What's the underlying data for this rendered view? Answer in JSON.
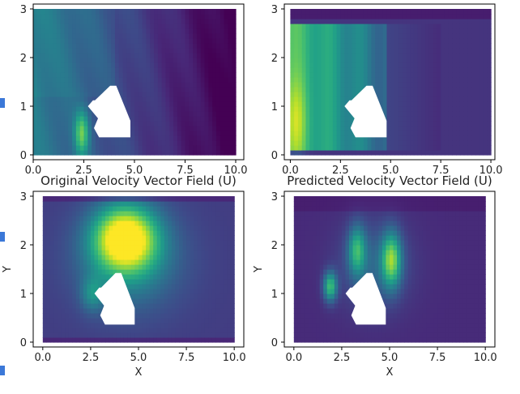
{
  "figure": {
    "side_markers": 3
  },
  "chart_data": [
    {
      "type": "heatmap",
      "id": "top-left",
      "title": "",
      "xlabel": "",
      "ylabel": "",
      "xlim": [
        0,
        10.4
      ],
      "ylim": [
        -0.1,
        3.1
      ],
      "xticks": [
        "0.0",
        "2.5",
        "5.0",
        "7.5",
        "10.0"
      ],
      "xtick_values": [
        0,
        2.5,
        5,
        7.5,
        10
      ],
      "yticks": [
        "0",
        "1",
        "2",
        "3"
      ],
      "ytick_values": [
        0,
        1,
        2,
        3
      ],
      "colormap": "viridis",
      "field": "smooth-left-gradient"
    },
    {
      "type": "heatmap",
      "id": "top-right",
      "title": "",
      "xlabel": "",
      "ylabel": "",
      "xlim": [
        -0.3,
        10.2
      ],
      "ylim": [
        -0.1,
        3.1
      ],
      "xticks": [
        "0.0",
        "2.5",
        "5.0",
        "7.5",
        "10.0"
      ],
      "xtick_values": [
        0,
        2.5,
        5,
        7.5,
        10
      ],
      "yticks": [
        "0",
        "1",
        "2",
        "3"
      ],
      "ytick_values": [
        0,
        1,
        2,
        3
      ],
      "colormap": "viridis",
      "field": "bright-left-block"
    },
    {
      "type": "heatmap",
      "id": "bottom-left",
      "title": "Original Velocity Vector Field (U)",
      "xlabel": "X",
      "ylabel": "Y",
      "xlim": [
        -0.5,
        10.5
      ],
      "ylim": [
        -0.1,
        3.1
      ],
      "xticks": [
        "0.0",
        "2.5",
        "5.0",
        "7.5",
        "10.0"
      ],
      "xtick_values": [
        0,
        2.5,
        5,
        7.5,
        10
      ],
      "yticks": [
        "0",
        "1",
        "2",
        "3"
      ],
      "ytick_values": [
        0,
        1,
        2,
        3
      ],
      "colormap": "viridis",
      "field": "hotspot-above-obstacle"
    },
    {
      "type": "heatmap",
      "id": "bottom-right",
      "title": "Predicted Velocity Vector Field (U)",
      "xlabel": "X",
      "ylabel": "Y",
      "xlim": [
        -0.5,
        10.5
      ],
      "ylim": [
        -0.1,
        3.1
      ],
      "xticks": [
        "0.0",
        "2.5",
        "5.0",
        "7.5",
        "10.0"
      ],
      "xtick_values": [
        0,
        2.5,
        5,
        7.5,
        10
      ],
      "yticks": [
        "0",
        "1",
        "2",
        "3"
      ],
      "ytick_values": [
        0,
        1,
        2,
        3
      ],
      "colormap": "viridis",
      "field": "twin-hotspots"
    }
  ]
}
